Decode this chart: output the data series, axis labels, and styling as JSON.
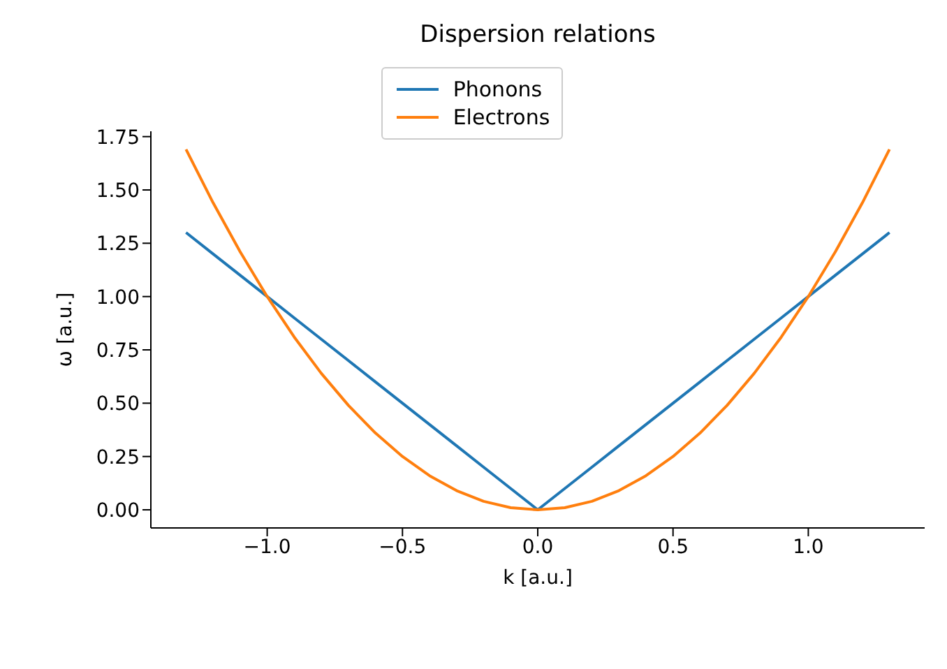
{
  "chart_data": {
    "type": "line",
    "title": "Dispersion relations",
    "xlabel": "k [a.u.]",
    "ylabel": "ω [a.u.]",
    "x": [
      -1.3,
      -1.2,
      -1.1,
      -1.0,
      -0.9,
      -0.8,
      -0.7,
      -0.6,
      -0.5,
      -0.4,
      -0.3,
      -0.2,
      -0.1,
      0.0,
      0.1,
      0.2,
      0.3,
      0.4,
      0.5,
      0.6,
      0.7,
      0.8,
      0.9,
      1.0,
      1.1,
      1.2,
      1.3
    ],
    "series": [
      {
        "name": "Phonons",
        "color": "#1f77b4",
        "values": [
          1.3,
          1.2,
          1.1,
          1.0,
          0.9,
          0.8,
          0.7,
          0.6,
          0.5,
          0.4,
          0.3,
          0.2,
          0.1,
          0.0,
          0.1,
          0.2,
          0.3,
          0.4,
          0.5,
          0.6,
          0.7,
          0.8,
          0.9,
          1.0,
          1.1,
          1.2,
          1.3
        ]
      },
      {
        "name": "Electrons",
        "color": "#ff7f0e",
        "values": [
          1.69,
          1.44,
          1.21,
          1.0,
          0.81,
          0.64,
          0.49,
          0.36,
          0.25,
          0.16,
          0.09,
          0.04,
          0.01,
          0.0,
          0.01,
          0.04,
          0.09,
          0.16,
          0.25,
          0.36,
          0.49,
          0.64,
          0.81,
          1.0,
          1.21,
          1.44,
          1.69
        ]
      }
    ],
    "xlim": [
      -1.43,
      1.43
    ],
    "ylim": [
      -0.085,
      1.775
    ],
    "xticks": [
      {
        "value": -1.0,
        "label": "−1.0"
      },
      {
        "value": -0.5,
        "label": "−0.5"
      },
      {
        "value": 0,
        "label": "0.0"
      },
      {
        "value": 0.5,
        "label": "0.5"
      },
      {
        "value": 1.0,
        "label": "1.0"
      }
    ],
    "yticks": [
      {
        "value": 0,
        "label": "0.00"
      },
      {
        "value": 0.25,
        "label": "0.25"
      },
      {
        "value": 0.5,
        "label": "0.50"
      },
      {
        "value": 0.75,
        "label": "0.75"
      },
      {
        "value": 1.0,
        "label": "1.00"
      },
      {
        "value": 1.25,
        "label": "1.25"
      },
      {
        "value": 1.5,
        "label": "1.50"
      },
      {
        "value": 1.75,
        "label": "1.75"
      }
    ],
    "grid": false,
    "legend": "top",
    "marker": "none",
    "line_style": "solid"
  }
}
